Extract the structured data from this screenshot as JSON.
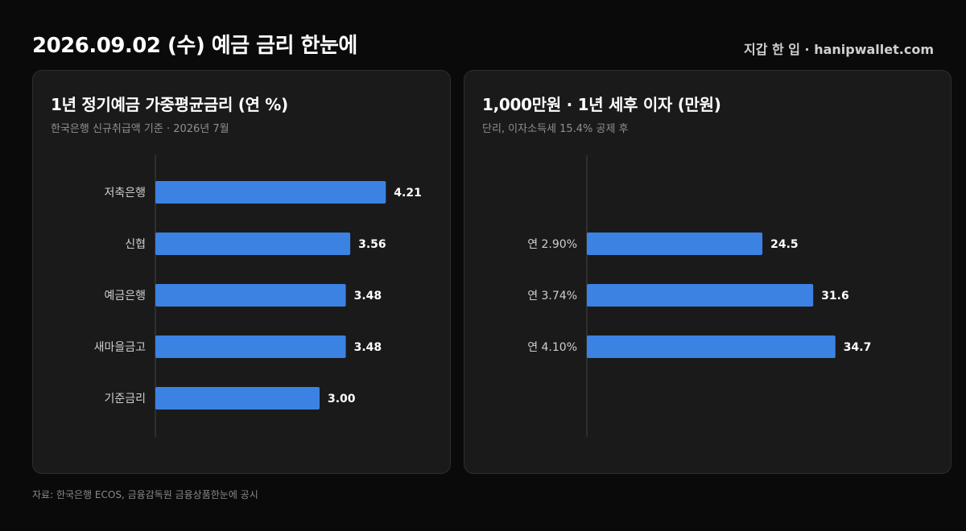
{
  "header": {
    "title": "2026.09.02 (수) 예금 금리 한눈에",
    "brand": "지갑 한 입 · hanipwallet.com"
  },
  "footer": {
    "source": "자료: 한국은행 ECOS, 금융감독원 금융상품한눈에 공시"
  },
  "colors": {
    "background": "#0a0a0a",
    "panel": "#1a1a1a",
    "bar": "#3b82e3",
    "axis": "#444444",
    "label": "#cfcfcf",
    "value": "#ffffff"
  },
  "chart_data": [
    {
      "type": "bar",
      "orientation": "horizontal",
      "title": "1년 정기예금 가중평균금리 (연 %)",
      "subtitle": "한국은행 신규취급액 기준 · 2026년 7월",
      "categories": [
        "저축은행",
        "신협",
        "예금은행",
        "새마을금고",
        "기준금리"
      ],
      "values": [
        4.21,
        3.56,
        3.48,
        3.48,
        3.0
      ],
      "value_labels": [
        "4.21",
        "3.56",
        "3.48",
        "3.48",
        "3.00"
      ],
      "xlim": [
        0,
        5.0
      ],
      "grid": false
    },
    {
      "type": "bar",
      "orientation": "horizontal",
      "title": "1,000만원 · 1년 세후 이자 (만원)",
      "subtitle": "단리, 이자소득세 15.4% 공제 후",
      "categories": [
        "연 2.90%",
        "연 3.74%",
        "연 4.10%"
      ],
      "values": [
        24.5,
        31.6,
        34.7
      ],
      "value_labels": [
        "24.5",
        "31.6",
        "34.7"
      ],
      "xlim": [
        0,
        40
      ],
      "grid": false
    }
  ]
}
